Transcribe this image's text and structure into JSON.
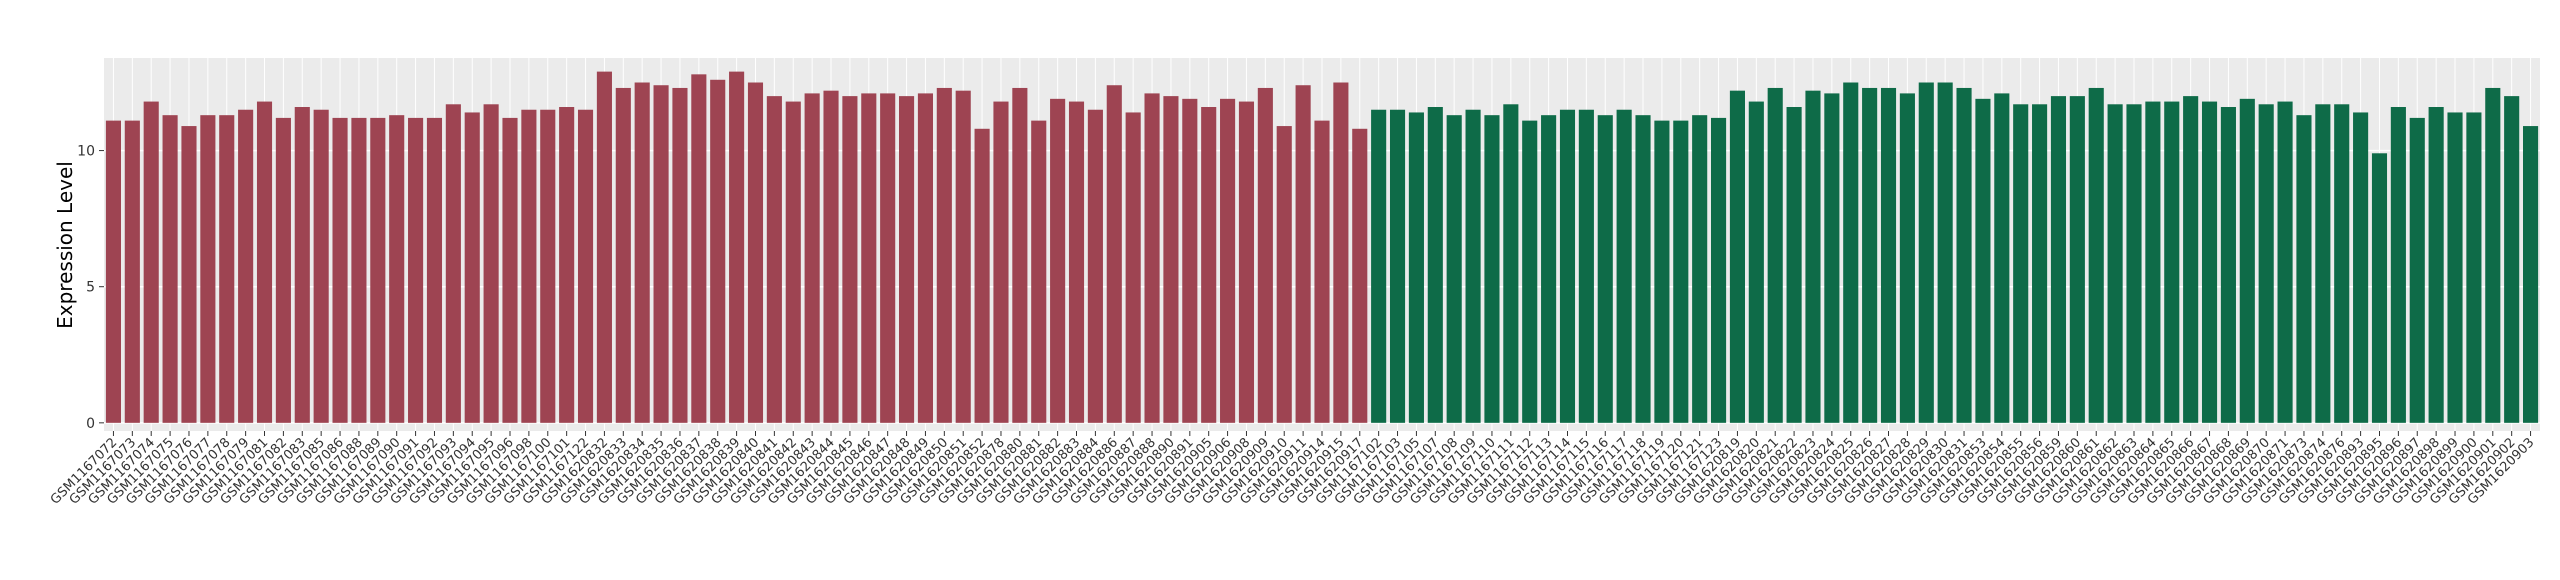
{
  "chart_data": {
    "type": "bar",
    "y_label": "Expression Level",
    "ylim": [
      -0.3,
      13.4
    ],
    "yticks": [
      0,
      5,
      10
    ],
    "grid": true,
    "series": [
      {
        "color": "#9e4452",
        "categories": [
          "GSM1167072",
          "GSM1167073",
          "GSM1167074",
          "GSM1167075",
          "GSM1167076",
          "GSM1167077",
          "GSM1167078",
          "GSM1167079",
          "GSM1167081",
          "GSM1167082",
          "GSM1167083",
          "GSM1167085",
          "GSM1167086",
          "GSM1167088",
          "GSM1167089",
          "GSM1167090",
          "GSM1167091",
          "GSM1167092",
          "GSM1167093",
          "GSM1167094",
          "GSM1167095",
          "GSM1167096",
          "GSM1167098",
          "GSM1167100",
          "GSM1167101",
          "GSM1167122",
          "GSM1620832",
          "GSM1620833",
          "GSM1620834",
          "GSM1620835",
          "GSM1620836",
          "GSM1620837",
          "GSM1620838",
          "GSM1620839",
          "GSM1620840",
          "GSM1620841",
          "GSM1620842",
          "GSM1620843",
          "GSM1620844",
          "GSM1620845",
          "GSM1620846",
          "GSM1620847",
          "GSM1620848",
          "GSM1620849",
          "GSM1620850",
          "GSM1620851",
          "GSM1620852",
          "GSM1620878",
          "GSM1620880",
          "GSM1620881",
          "GSM1620882",
          "GSM1620883",
          "GSM1620884",
          "GSM1620886",
          "GSM1620887",
          "GSM1620888",
          "GSM1620890",
          "GSM1620891",
          "GSM1620905",
          "GSM1620906",
          "GSM1620908",
          "GSM1620909",
          "GSM1620910",
          "GSM1620911",
          "GSM1620914",
          "GSM1620915",
          "GSM1620917"
        ],
        "values": [
          11.1,
          11.1,
          11.8,
          11.3,
          10.9,
          11.3,
          11.3,
          11.5,
          11.8,
          11.2,
          11.6,
          11.5,
          11.2,
          11.2,
          11.2,
          11.3,
          11.2,
          11.2,
          11.7,
          11.4,
          11.7,
          11.2,
          11.5,
          11.5,
          11.6,
          11.5,
          12.9,
          12.3,
          12.5,
          12.4,
          12.3,
          12.8,
          12.6,
          12.9,
          12.5,
          12.0,
          11.8,
          12.1,
          12.2,
          12.0,
          12.1,
          12.1,
          12.0,
          12.1,
          12.3,
          12.2,
          10.8,
          11.8,
          12.3,
          11.1,
          11.9,
          11.8,
          11.5,
          12.4,
          11.4,
          12.1,
          12.0,
          11.9,
          11.6,
          11.9,
          11.8,
          12.3,
          10.9,
          12.4,
          11.1,
          12.5,
          10.8
        ]
      },
      {
        "color": "#0e6b48",
        "categories": [
          "GSM1167102",
          "GSM1167103",
          "GSM1167105",
          "GSM1167107",
          "GSM1167108",
          "GSM1167109",
          "GSM1167110",
          "GSM1167111",
          "GSM1167112",
          "GSM1167113",
          "GSM1167114",
          "GSM1167115",
          "GSM1167116",
          "GSM1167117",
          "GSM1167118",
          "GSM1167119",
          "GSM1167120",
          "GSM1167121",
          "GSM1167123",
          "GSM1620819",
          "GSM1620820",
          "GSM1620821",
          "GSM1620822",
          "GSM1620823",
          "GSM1620824",
          "GSM1620825",
          "GSM1620826",
          "GSM1620827",
          "GSM1620828",
          "GSM1620829",
          "GSM1620830",
          "GSM1620831",
          "GSM1620853",
          "GSM1620854",
          "GSM1620855",
          "GSM1620856",
          "GSM1620859",
          "GSM1620860",
          "GSM1620861",
          "GSM1620862",
          "GSM1620863",
          "GSM1620864",
          "GSM1620865",
          "GSM1620866",
          "GSM1620867",
          "GSM1620868",
          "GSM1620869",
          "GSM1620870",
          "GSM1620871",
          "GSM1620873",
          "GSM1620874",
          "GSM1620876",
          "GSM1620893",
          "GSM1620895",
          "GSM1620896",
          "GSM1620897",
          "GSM1620898",
          "GSM1620899",
          "GSM1620900",
          "GSM1620901",
          "GSM1620902",
          "GSM1620903"
        ],
        "values": [
          11.5,
          11.5,
          11.4,
          11.6,
          11.3,
          11.5,
          11.3,
          11.7,
          11.1,
          11.3,
          11.5,
          11.5,
          11.3,
          11.5,
          11.3,
          11.1,
          11.1,
          11.3,
          11.2,
          12.2,
          11.8,
          12.3,
          11.6,
          12.2,
          12.1,
          12.5,
          12.3,
          12.3,
          12.1,
          12.5,
          12.5,
          12.3,
          11.9,
          12.1,
          11.7,
          11.7,
          12.0,
          12.0,
          12.3,
          11.7,
          11.7,
          11.8,
          11.8,
          12.0,
          11.8,
          11.6,
          11.9,
          11.7,
          11.8,
          11.3,
          11.7,
          11.7,
          11.4,
          9.9,
          11.6,
          11.2,
          11.6,
          11.4,
          11.4,
          12.3,
          12.0,
          10.9
        ]
      }
    ]
  }
}
